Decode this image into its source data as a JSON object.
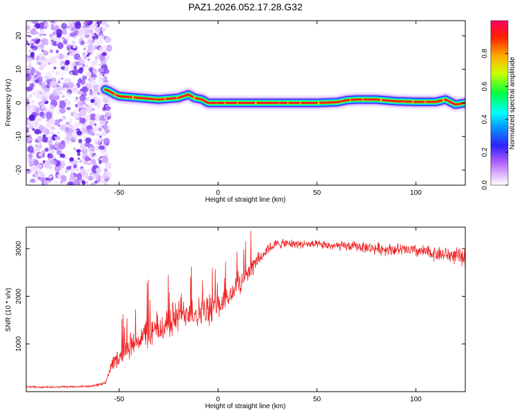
{
  "title": "PAZ1.2026.052.17.28.G32",
  "chart_data": [
    {
      "type": "heatmap",
      "name": "spectrogram",
      "xlabel": "Height of straight line (km)",
      "ylabel": "Frequency (Hz)",
      "xlim": [
        -97,
        125
      ],
      "ylim": [
        -24.5,
        24.5
      ],
      "xticks": [
        -50,
        0,
        50,
        100
      ],
      "yticks": [
        20,
        10,
        0,
        -10,
        -20
      ],
      "noise_region_x": [
        -97,
        -55
      ],
      "ridge": {
        "x": [
          -57,
          -55,
          -52,
          -50,
          -40,
          -30,
          -20,
          -15,
          -12,
          -8,
          -5,
          0,
          10,
          20,
          30,
          40,
          50,
          60,
          65,
          70,
          80,
          90,
          100,
          110,
          115,
          120,
          125
        ],
        "freq": [
          4,
          3.5,
          2.5,
          2,
          1.5,
          1,
          1.5,
          2.5,
          1.5,
          1,
          0,
          0,
          0,
          0,
          0,
          0,
          0,
          0.2,
          0.8,
          1,
          1,
          0.5,
          0.3,
          0.3,
          1,
          -0.5,
          0
        ],
        "amplitude_peak": 0.98
      },
      "colorbar": {
        "label": "Normalized spectral amplitude",
        "range": [
          0,
          1
        ],
        "ticks": [
          "0.0",
          "0.2",
          "0.4",
          "0.6",
          "0.8"
        ],
        "colormap": "purple-blue-cyan-green-yellow-red"
      }
    },
    {
      "type": "line",
      "name": "snr",
      "xlabel": "Height of straight line (km)",
      "ylabel": "SNR (10 * v/v)",
      "xlim": [
        -97,
        125
      ],
      "ylim": [
        0,
        3450
      ],
      "xticks": [
        -50,
        0,
        50,
        100
      ],
      "yticks": [
        1000,
        2000,
        3000
      ],
      "color": "#ee2222",
      "series": [
        {
          "name": "SNR",
          "x": [
            -97,
            -80,
            -65,
            -57,
            -54,
            -50,
            -45,
            -40,
            -35,
            -30,
            -25,
            -20,
            -15,
            -10,
            -5,
            0,
            5,
            10,
            15,
            20,
            25,
            30,
            40,
            50,
            60,
            70,
            80,
            90,
            100,
            110,
            120,
            125
          ],
          "mean": [
            100,
            100,
            110,
            170,
            550,
            750,
            950,
            1100,
            1250,
            1300,
            1450,
            1600,
            1700,
            1650,
            1700,
            1800,
            1950,
            2250,
            2500,
            2750,
            3000,
            3100,
            3100,
            3080,
            3050,
            3050,
            3000,
            2980,
            2950,
            2900,
            2850,
            2800
          ],
          "noise": [
            25,
            25,
            25,
            40,
            150,
            250,
            300,
            350,
            400,
            450,
            450,
            450,
            400,
            400,
            400,
            350,
            300,
            300,
            250,
            200,
            150,
            120,
            110,
            110,
            120,
            130,
            150,
            160,
            170,
            190,
            210,
            220
          ]
        }
      ]
    }
  ]
}
